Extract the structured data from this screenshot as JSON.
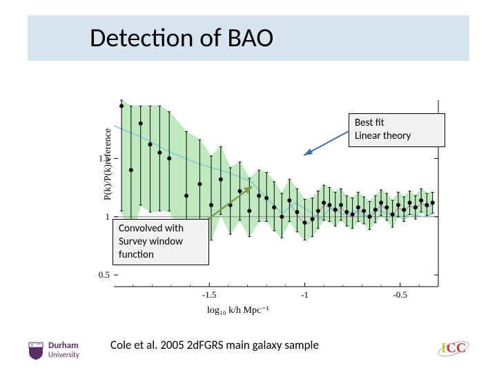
{
  "title": "Detection of BAO",
  "chart": {
    "type": "scatter-band",
    "xlabel": "log₁₀ k/h Mpc⁻¹",
    "ylabel": "P(k)/P(k)reference",
    "xlim": [
      -2.0,
      -0.3
    ],
    "ylim": [
      0.4,
      2.0
    ],
    "yticks": [
      {
        "v": 0.5,
        "label": "0.5"
      },
      {
        "v": 1.0,
        "label": "1"
      },
      {
        "v": 1.5,
        "label": "1.5"
      }
    ],
    "xticks": [
      {
        "v": -1.5,
        "label": "-1.5"
      },
      {
        "v": -1.0,
        "label": "-1"
      },
      {
        "v": -0.5,
        "label": "-0.5"
      }
    ],
    "band_color": "#8bd98b",
    "band_fill_opacity": 0.55,
    "data_color": "#000000",
    "reference_line_color": "#888888",
    "second_line_color": "#d070c8",
    "theory_curve_color": "#7fcad6",
    "background_color": "#ffffff",
    "point_size": 3,
    "points": [
      {
        "x": -1.96,
        "y": 1.95,
        "eU": 0.05,
        "eL": 0.9
      },
      {
        "x": -1.91,
        "y": 1.4,
        "eU": 0.55,
        "eL": 0.6
      },
      {
        "x": -1.86,
        "y": 1.8,
        "eU": 0.15,
        "eL": 0.7
      },
      {
        "x": -1.81,
        "y": 1.62,
        "eU": 0.33,
        "eL": 0.58
      },
      {
        "x": -1.76,
        "y": 1.55,
        "eU": 0.4,
        "eL": 0.5
      },
      {
        "x": -1.71,
        "y": 1.5,
        "eU": 0.4,
        "eL": 0.45
      },
      {
        "x": -1.62,
        "y": 1.18,
        "eU": 0.55,
        "eL": 0.38
      },
      {
        "x": -1.55,
        "y": 1.28,
        "eU": 0.38,
        "eL": 0.35
      },
      {
        "x": -1.49,
        "y": 1.1,
        "eU": 0.42,
        "eL": 0.3
      },
      {
        "x": -1.44,
        "y": 1.32,
        "eU": 0.28,
        "eL": 0.3
      },
      {
        "x": -1.39,
        "y": 1.1,
        "eU": 0.32,
        "eL": 0.25
      },
      {
        "x": -1.34,
        "y": 1.22,
        "eU": 0.25,
        "eL": 0.25
      },
      {
        "x": -1.29,
        "y": 1.05,
        "eU": 0.28,
        "eL": 0.22
      },
      {
        "x": -1.24,
        "y": 1.18,
        "eU": 0.22,
        "eL": 0.22
      },
      {
        "x": -1.2,
        "y": 1.16,
        "eU": 0.22,
        "eL": 0.2
      },
      {
        "x": -1.16,
        "y": 1.08,
        "eU": 0.22,
        "eL": 0.2
      },
      {
        "x": -1.12,
        "y": 1.0,
        "eU": 0.2,
        "eL": 0.18
      },
      {
        "x": -1.08,
        "y": 1.14,
        "eU": 0.18,
        "eL": 0.18
      },
      {
        "x": -1.04,
        "y": 1.04,
        "eU": 0.2,
        "eL": 0.17
      },
      {
        "x": -1.0,
        "y": 0.95,
        "eU": 0.2,
        "eL": 0.15
      },
      {
        "x": -0.96,
        "y": 0.98,
        "eU": 0.18,
        "eL": 0.15
      },
      {
        "x": -0.93,
        "y": 1.05,
        "eU": 0.17,
        "eL": 0.15
      },
      {
        "x": -0.9,
        "y": 1.12,
        "eU": 0.15,
        "eL": 0.15
      },
      {
        "x": -0.87,
        "y": 1.1,
        "eU": 0.15,
        "eL": 0.14
      },
      {
        "x": -0.84,
        "y": 1.06,
        "eU": 0.15,
        "eL": 0.14
      },
      {
        "x": -0.81,
        "y": 1.1,
        "eU": 0.14,
        "eL": 0.13
      },
      {
        "x": -0.78,
        "y": 1.04,
        "eU": 0.14,
        "eL": 0.12
      },
      {
        "x": -0.75,
        "y": 1.02,
        "eU": 0.14,
        "eL": 0.12
      },
      {
        "x": -0.72,
        "y": 1.08,
        "eU": 0.13,
        "eL": 0.12
      },
      {
        "x": -0.69,
        "y": 1.05,
        "eU": 0.12,
        "eL": 0.11
      },
      {
        "x": -0.66,
        "y": 1.0,
        "eU": 0.13,
        "eL": 0.11
      },
      {
        "x": -0.63,
        "y": 1.06,
        "eU": 0.12,
        "eL": 0.11
      },
      {
        "x": -0.6,
        "y": 1.12,
        "eU": 0.11,
        "eL": 0.11
      },
      {
        "x": -0.57,
        "y": 1.08,
        "eU": 0.12,
        "eL": 0.11
      },
      {
        "x": -0.54,
        "y": 1.02,
        "eU": 0.12,
        "eL": 0.11
      },
      {
        "x": -0.51,
        "y": 1.1,
        "eU": 0.11,
        "eL": 0.1
      },
      {
        "x": -0.48,
        "y": 1.06,
        "eU": 0.11,
        "eL": 0.1
      },
      {
        "x": -0.45,
        "y": 1.12,
        "eU": 0.1,
        "eL": 0.1
      },
      {
        "x": -0.42,
        "y": 1.08,
        "eU": 0.1,
        "eL": 0.1
      },
      {
        "x": -0.39,
        "y": 1.14,
        "eU": 0.1,
        "eL": 0.1
      },
      {
        "x": -0.36,
        "y": 1.1,
        "eU": 0.1,
        "eL": 0.09
      },
      {
        "x": -0.33,
        "y": 1.12,
        "eU": 0.09,
        "eL": 0.09
      }
    ],
    "theory_curve": [
      {
        "x": -2.0,
        "y": 1.78
      },
      {
        "x": -1.85,
        "y": 1.68
      },
      {
        "x": -1.7,
        "y": 1.55
      },
      {
        "x": -1.55,
        "y": 1.45
      },
      {
        "x": -1.4,
        "y": 1.38
      },
      {
        "x": -1.28,
        "y": 1.3
      },
      {
        "x": -1.2,
        "y": 1.16
      },
      {
        "x": -1.12,
        "y": 1.03
      },
      {
        "x": -1.05,
        "y": 1.12
      },
      {
        "x": -0.98,
        "y": 1.05
      },
      {
        "x": -0.92,
        "y": 0.98
      },
      {
        "x": -0.86,
        "y": 1.08
      },
      {
        "x": -0.8,
        "y": 1.02
      },
      {
        "x": -0.74,
        "y": 1.05
      },
      {
        "x": -0.68,
        "y": 1.0
      },
      {
        "x": -0.62,
        "y": 1.06
      },
      {
        "x": -0.56,
        "y": 1.02
      },
      {
        "x": -0.5,
        "y": 1.0
      },
      {
        "x": -0.44,
        "y": 1.02
      },
      {
        "x": -0.38,
        "y": 1.0
      },
      {
        "x": -0.33,
        "y": 1.02
      }
    ]
  },
  "callouts": {
    "top": {
      "line1": "Best fit",
      "line2": "Linear theory"
    },
    "left": {
      "line1": "Convolved with",
      "line2": "Survey window",
      "line3": "function"
    }
  },
  "caption": "Cole et al. 2005     2dFGRS main galaxy sample",
  "logos": {
    "durham": {
      "name": "Durham",
      "sub": "University",
      "color": "#5a2d66"
    },
    "icc": {
      "text": "ICC"
    }
  },
  "arrows": {
    "top": {
      "color": "#426ea8"
    },
    "left": {
      "color": "#7f9c4a"
    }
  }
}
